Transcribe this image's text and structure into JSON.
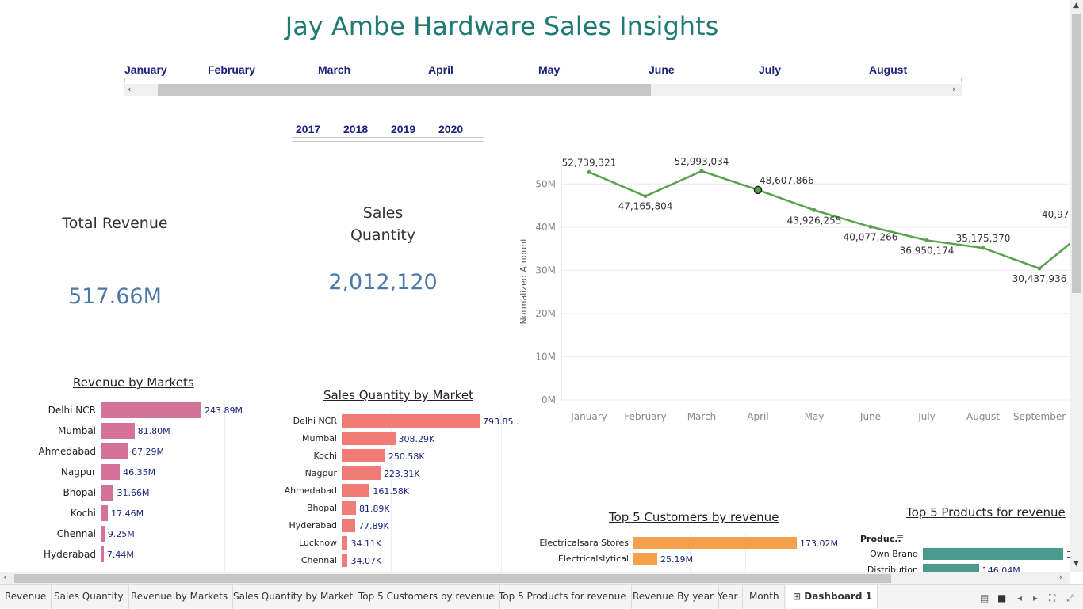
{
  "title": "Jay Ambe Hardware Sales Insights",
  "months": [
    "January",
    "February",
    "March",
    "April",
    "May",
    "June",
    "July",
    "August"
  ],
  "years": [
    "2017",
    "2018",
    "2019",
    "2020"
  ],
  "kpi": {
    "revenue_label": "Total Revenue",
    "revenue_value": "517.66M",
    "qty_label_1": "Sales",
    "qty_label_2": "Quantity",
    "qty_value": "2,012,120"
  },
  "revenue_by_markets": {
    "title": "Revenue by Markets",
    "rows": [
      {
        "label": "Delhi NCR",
        "value": "243.89M",
        "num": 243.89
      },
      {
        "label": "Mumbai",
        "value": "81.80M",
        "num": 81.8
      },
      {
        "label": "Ahmedabad",
        "value": "67.29M",
        "num": 67.29
      },
      {
        "label": "Nagpur",
        "value": "46.35M",
        "num": 46.35
      },
      {
        "label": "Bhopal",
        "value": "31.66M",
        "num": 31.66
      },
      {
        "label": "Kochi",
        "value": "17.46M",
        "num": 17.46
      },
      {
        "label": "Chennai",
        "value": "9.25M",
        "num": 9.25
      },
      {
        "label": "Hyderabad",
        "value": "7.44M",
        "num": 7.44
      }
    ],
    "color": "#d4729a"
  },
  "qty_by_market": {
    "title": "Sales Quantity by Market",
    "rows": [
      {
        "label": "Delhi NCR",
        "value": "793.85..",
        "num": 793.85
      },
      {
        "label": "Mumbai",
        "value": "308.29K",
        "num": 308.29
      },
      {
        "label": "Kochi",
        "value": "250.58K",
        "num": 250.58
      },
      {
        "label": "Nagpur",
        "value": "223.31K",
        "num": 223.31
      },
      {
        "label": "Ahmedabad",
        "value": "161.58K",
        "num": 161.58
      },
      {
        "label": "Bhopal",
        "value": "81.89K",
        "num": 81.89
      },
      {
        "label": "Hyderabad",
        "value": "77.89K",
        "num": 77.89
      },
      {
        "label": "Lucknow",
        "value": "34.11K",
        "num": 34.11
      },
      {
        "label": "Chennai",
        "value": "34.07K",
        "num": 34.07
      }
    ],
    "color": "#f07b77"
  },
  "chart_data": {
    "type": "line",
    "categories": [
      "January",
      "February",
      "March",
      "April",
      "May",
      "June",
      "July",
      "August",
      "September"
    ],
    "values": [
      52739321,
      47165804,
      52993034,
      48607866,
      43926255,
      40077266,
      36950174,
      35175370,
      30437936
    ],
    "labels": [
      "52,739,321",
      "47,165,804",
      "52,993,034",
      "48,607,866",
      "43,926,255",
      "40,077,266",
      "36,950,174",
      "35,175,370",
      "30,437,936"
    ],
    "extra_label": "40,97",
    "ylabel": "Normalized Amount",
    "yticks": [
      "0M",
      "10M",
      "20M",
      "30M",
      "40M",
      "50M"
    ],
    "ylim": [
      0,
      55000000
    ],
    "color": "#59a14f"
  },
  "top_customers": {
    "title": "Top 5 Customers by revenue",
    "rows": [
      {
        "label": "Electricalsara Stores",
        "value": "173.02M",
        "num": 173.02
      },
      {
        "label": "Electricalslytical",
        "value": "25.19M",
        "num": 25.19
      }
    ],
    "color": "#f4a04c"
  },
  "top_products": {
    "title": "Top 5 Products for revenue",
    "header": "Produc..",
    "rows": [
      {
        "label": "Own Brand",
        "value": "3",
        "num": 100
      },
      {
        "label": "Distribution",
        "value": "146.04M",
        "num": 40
      }
    ],
    "color": "#4a9a8f"
  },
  "tabs": [
    "Revenue",
    "Sales Quantity",
    "Revenue by Markets",
    "Sales Quantity by Market",
    "Top 5 Customers by revenue",
    "Top 5 Products for revenue",
    "Revenue By year",
    "Year",
    "Month",
    "Dashboard 1"
  ],
  "colors": {
    "title": "#1f7a73",
    "filter": "#1a237e",
    "kpi": "#4e79a7"
  }
}
